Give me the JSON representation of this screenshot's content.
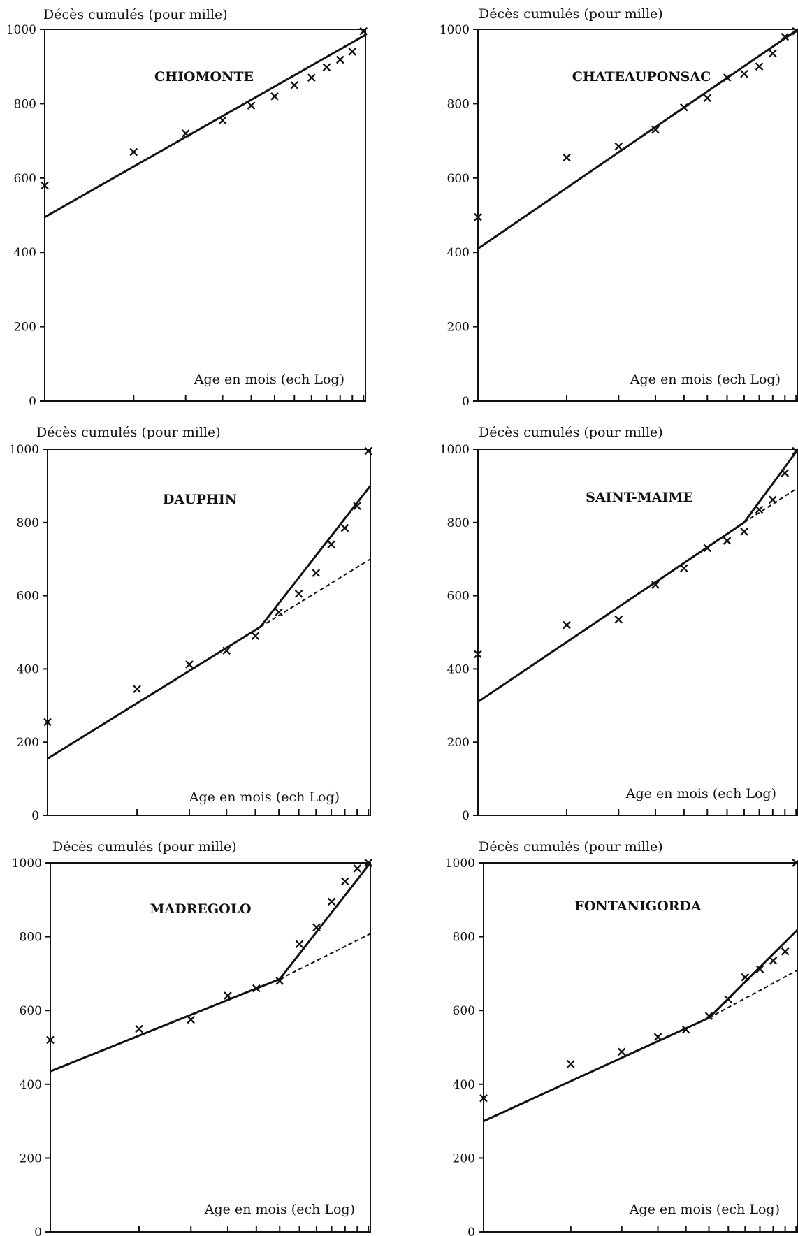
{
  "chart_data": [
    {
      "type": "line",
      "title": "CHIOMONTE",
      "ylabel": "Décès cumulés (pour mille)",
      "xlabel": "Age en mois (ech Log)",
      "ylim": [
        0,
        1000
      ],
      "yticks": [
        "0",
        "200",
        "400",
        "600",
        "800",
        "1000"
      ],
      "xlim": [
        0,
        2.5
      ],
      "x_scale": "log-month-index",
      "x_tick_months": [
        1,
        2,
        3,
        4,
        5,
        6,
        7,
        8,
        9,
        10,
        11,
        12
      ],
      "points": [
        [
          1,
          580
        ],
        [
          2,
          670
        ],
        [
          3,
          720
        ],
        [
          4,
          755
        ],
        [
          5,
          795
        ],
        [
          6,
          820
        ],
        [
          7,
          850
        ],
        [
          8,
          870
        ],
        [
          9,
          898
        ],
        [
          10,
          918
        ],
        [
          11,
          940
        ],
        [
          12,
          995
        ]
      ],
      "fit_lines": [
        {
          "style": "solid",
          "x": [
            0,
            2.5
          ],
          "y": [
            495,
            985
          ]
        }
      ],
      "grid": false
    },
    {
      "type": "line",
      "title": "CHATEAUPONSAC",
      "ylabel": "Décès cumulés (pour mille)",
      "xlabel": "Age en mois (ech Log)",
      "ylim": [
        0,
        1000
      ],
      "yticks": [
        "0",
        "200",
        "400",
        "600",
        "800",
        "1000"
      ],
      "xlim": [
        0,
        2.5
      ],
      "x_scale": "log-month-index",
      "x_tick_months": [
        1,
        2,
        3,
        4,
        5,
        6,
        7,
        8,
        9,
        10,
        11,
        12
      ],
      "points": [
        [
          1,
          495
        ],
        [
          2,
          655
        ],
        [
          3,
          685
        ],
        [
          4,
          730
        ],
        [
          5,
          790
        ],
        [
          6,
          815
        ],
        [
          7,
          870
        ],
        [
          8,
          880
        ],
        [
          9,
          900
        ],
        [
          10,
          935
        ],
        [
          11,
          980
        ],
        [
          12,
          995
        ]
      ],
      "fit_lines": [
        {
          "style": "solid",
          "x": [
            0,
            2.5
          ],
          "y": [
            410,
            1000
          ]
        }
      ],
      "grid": false
    },
    {
      "type": "line",
      "title": "DAUPHIN",
      "ylabel": "Décès cumulés (pour mille)",
      "xlabel": "Age en mois (ech Log)",
      "ylim": [
        0,
        1000
      ],
      "yticks": [
        "0",
        "200",
        "400",
        "600",
        "800",
        "1000"
      ],
      "xlim": [
        0,
        2.5
      ],
      "x_scale": "log-month-index",
      "x_tick_months": [
        1,
        2,
        3,
        4,
        5,
        6,
        7,
        8,
        9,
        10,
        11,
        12
      ],
      "points": [
        [
          1,
          255
        ],
        [
          2,
          345
        ],
        [
          3,
          412
        ],
        [
          4,
          450
        ],
        [
          5,
          490
        ],
        [
          6,
          555
        ],
        [
          7,
          605
        ],
        [
          8,
          662
        ],
        [
          9,
          740
        ],
        [
          10,
          785
        ],
        [
          11,
          845
        ],
        [
          12,
          995
        ]
      ],
      "fit_lines": [
        {
          "style": "solid",
          "x": [
            0,
            1.649
          ],
          "y": [
            155,
            515
          ]
        },
        {
          "style": "solid",
          "x": [
            1.649,
            2.5
          ],
          "y": [
            515,
            900
          ]
        },
        {
          "style": "dashed",
          "x": [
            1.649,
            2.5
          ],
          "y": [
            515,
            700
          ]
        }
      ],
      "grid": false
    },
    {
      "type": "line",
      "title": "SAINT-MAIME",
      "ylabel": "Décès cumulés (pour mille)",
      "xlabel": "Age en mois (ech Log)",
      "ylim": [
        0,
        1000
      ],
      "yticks": [
        "0",
        "200",
        "400",
        "600",
        "800",
        "1000"
      ],
      "xlim": [
        0,
        2.5
      ],
      "x_scale": "log-month-index",
      "x_tick_months": [
        1,
        2,
        3,
        4,
        5,
        6,
        7,
        8,
        9,
        10,
        11,
        12
      ],
      "points": [
        [
          1,
          440
        ],
        [
          2,
          520
        ],
        [
          3,
          535
        ],
        [
          4,
          630
        ],
        [
          5,
          675
        ],
        [
          6,
          730
        ],
        [
          7,
          750
        ],
        [
          8,
          775
        ],
        [
          9,
          835
        ],
        [
          10,
          862
        ],
        [
          11,
          935
        ],
        [
          12,
          995
        ]
      ],
      "fit_lines": [
        {
          "style": "solid",
          "x": [
            0,
            2.079
          ],
          "y": [
            310,
            800
          ]
        },
        {
          "style": "solid",
          "x": [
            2.079,
            2.5
          ],
          "y": [
            800,
            1000
          ]
        },
        {
          "style": "dashed",
          "x": [
            2.079,
            2.5
          ],
          "y": [
            800,
            895
          ]
        }
      ],
      "grid": false
    },
    {
      "type": "line",
      "title": "MADREGOLO",
      "ylabel": "Décès cumulés (pour mille)",
      "xlabel": "Age en mois (ech Log)",
      "ylim": [
        0,
        1000
      ],
      "yticks": [
        "0",
        "200",
        "400",
        "600",
        "800",
        "1000"
      ],
      "xlim": [
        0,
        2.5
      ],
      "x_scale": "log-month-index",
      "x_tick_months": [
        1,
        2,
        3,
        4,
        5,
        6,
        7,
        8,
        9,
        10,
        11,
        12
      ],
      "points": [
        [
          1,
          520
        ],
        [
          2,
          550
        ],
        [
          3,
          575
        ],
        [
          4,
          640
        ],
        [
          5,
          660
        ],
        [
          6,
          680
        ],
        [
          7,
          780
        ],
        [
          8,
          825
        ],
        [
          9,
          895
        ],
        [
          10,
          950
        ],
        [
          11,
          985
        ],
        [
          12,
          1000
        ]
      ],
      "fit_lines": [
        {
          "style": "solid",
          "x": [
            0,
            1.792
          ],
          "y": [
            435,
            685
          ]
        },
        {
          "style": "solid",
          "x": [
            1.792,
            2.5
          ],
          "y": [
            685,
            1000
          ]
        },
        {
          "style": "dashed",
          "x": [
            1.792,
            2.5
          ],
          "y": [
            685,
            808
          ]
        }
      ],
      "grid": false
    },
    {
      "type": "line",
      "title": "FONTANIGORDA",
      "ylabel": "Décès cumulés (pour mille)",
      "xlabel": "Age en mois (ech Log)",
      "ylim": [
        0,
        1000
      ],
      "yticks": [
        "0",
        "200",
        "400",
        "600",
        "800",
        "1000"
      ],
      "xlim": [
        0,
        2.5
      ],
      "x_scale": "log-month-index",
      "x_tick_months": [
        1,
        2,
        3,
        4,
        5,
        6,
        7,
        8,
        9,
        10,
        11,
        12
      ],
      "points": [
        [
          1,
          362
        ],
        [
          2,
          455
        ],
        [
          3,
          488
        ],
        [
          4,
          528
        ],
        [
          5,
          548
        ],
        [
          6,
          585
        ],
        [
          7,
          630
        ],
        [
          8,
          690
        ],
        [
          9,
          712
        ],
        [
          10,
          735
        ],
        [
          11,
          760
        ],
        [
          12,
          1000
        ]
      ],
      "fit_lines": [
        {
          "style": "solid",
          "x": [
            0,
            1.792
          ],
          "y": [
            300,
            580
          ]
        },
        {
          "style": "solid",
          "x": [
            1.792,
            2.5
          ],
          "y": [
            580,
            820
          ]
        },
        {
          "style": "dashed",
          "x": [
            1.792,
            2.5
          ],
          "y": [
            580,
            710
          ]
        }
      ],
      "grid": false
    }
  ]
}
